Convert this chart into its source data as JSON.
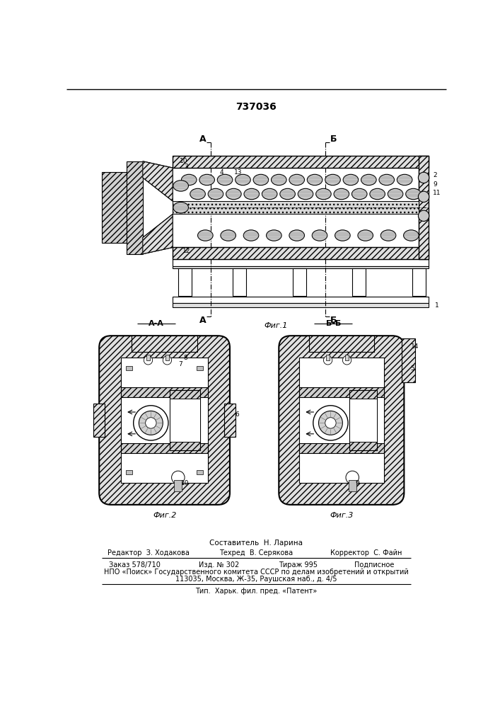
{
  "patent_number": "737036",
  "background_color": "#ffffff",
  "fig1_label": "Фиг.1",
  "fig2_label": "Фиг.2",
  "fig3_label": "Фиг.3",
  "section_aa": "А-А",
  "section_bb": "Б-Б",
  "footer_composer": "Составитель  Н. Ларина",
  "footer_editor": "Редактор  З. Ходакова",
  "footer_techred": "Техред  В. Серякова",
  "footer_corrector": "Корректор  С. Файн",
  "footer_order": "Заказ 578/710",
  "footer_izd": "Изд. № 302",
  "footer_tirazh": "Тираж 995",
  "footer_podpisnoe": "Подписное",
  "footer_npo": "НПО «Поиск» Государственного комитета СССР по делам изобретений и открытий",
  "footer_addr": "113035, Москва, Ж-35, Раушская наб., д. 4/5",
  "footer_tip": "Тип.  Харьк. фил. пред. «Патент»"
}
